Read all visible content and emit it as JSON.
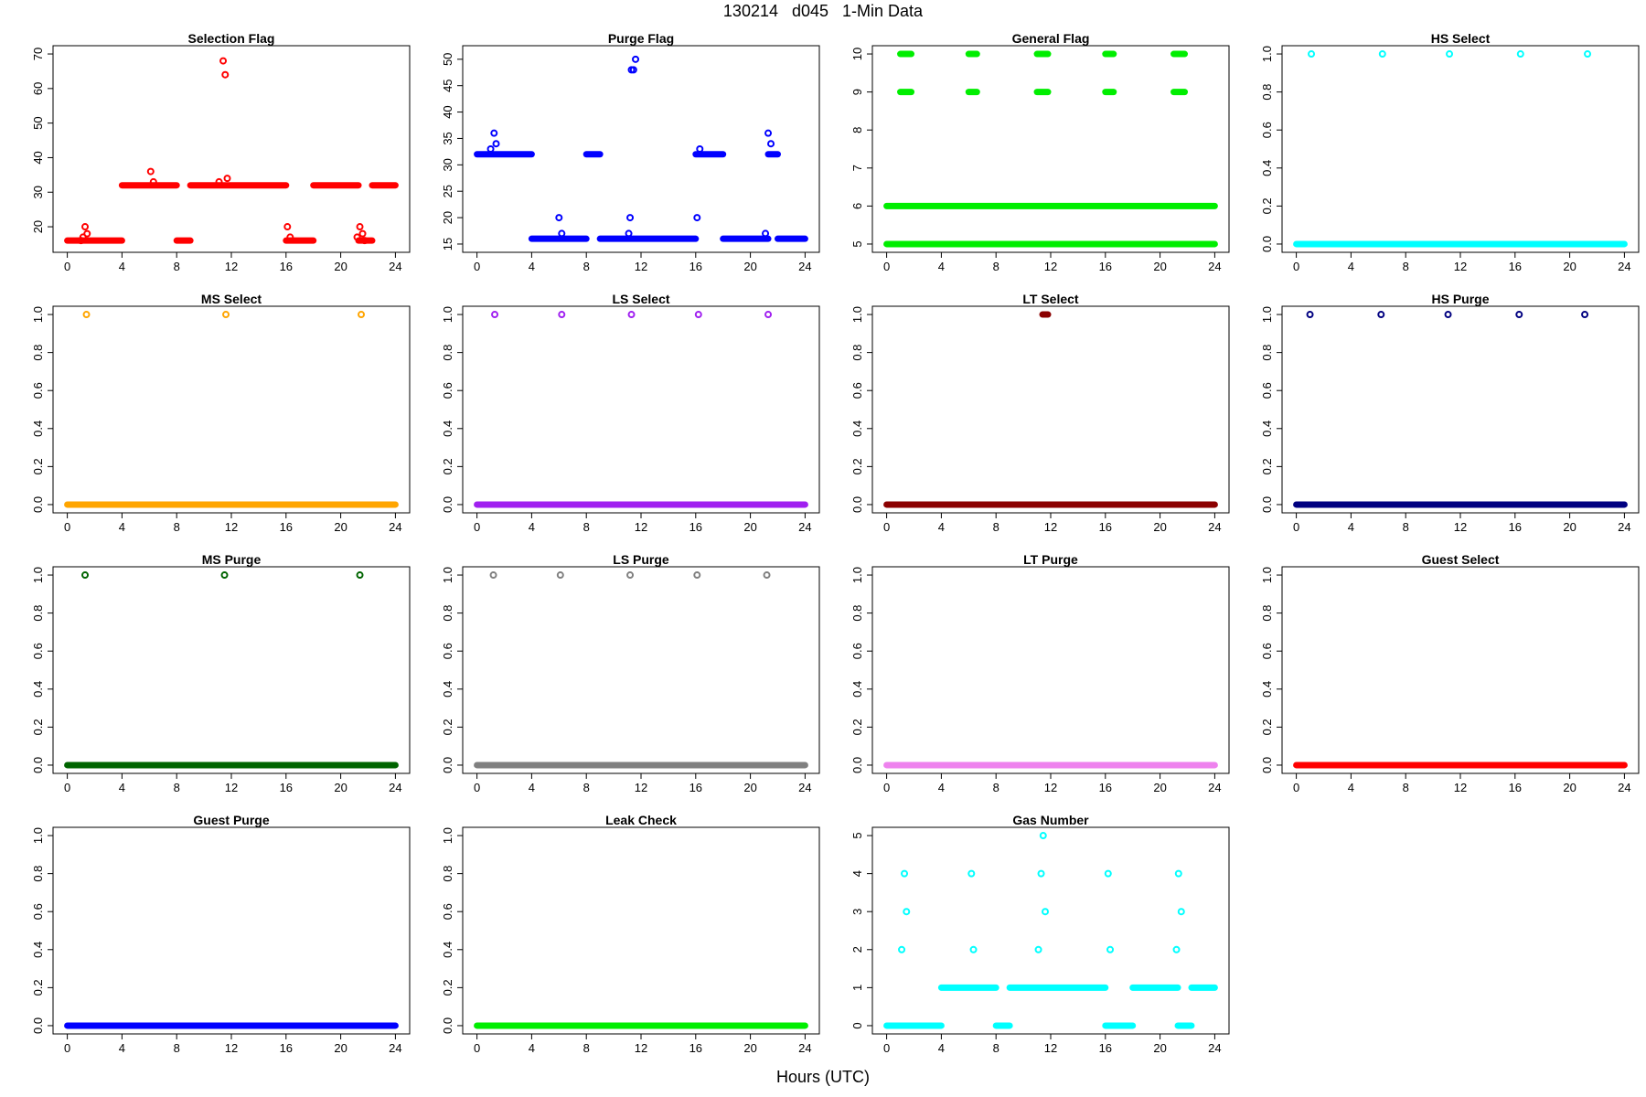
{
  "figure": {
    "title": "130214   d045   1-Min Data",
    "xlabel": "Hours (UTC)"
  },
  "chart_data": [
    {
      "title": "Selection Flag",
      "type": "scatter",
      "color": "#ff0000",
      "xlim": [
        0,
        24
      ],
      "ylim": [
        15,
        70
      ],
      "xticks": [
        0,
        4,
        8,
        12,
        16,
        20,
        24
      ],
      "yticks": [
        20,
        30,
        40,
        50,
        60,
        70
      ],
      "segments": [
        [
          0,
          4,
          16
        ],
        [
          4,
          8,
          32
        ],
        [
          8,
          9,
          16
        ],
        [
          9,
          16,
          32
        ],
        [
          16,
          18,
          16
        ],
        [
          18,
          21.3,
          32
        ],
        [
          21.3,
          22.3,
          16
        ],
        [
          22.3,
          24,
          32
        ]
      ],
      "points": [
        [
          1.0,
          16
        ],
        [
          1.15,
          17
        ],
        [
          1.3,
          20
        ],
        [
          1.45,
          18
        ],
        [
          6.1,
          36
        ],
        [
          6.3,
          33
        ],
        [
          11.1,
          33
        ],
        [
          11.4,
          68
        ],
        [
          11.55,
          64
        ],
        [
          11.7,
          34
        ],
        [
          16.1,
          20
        ],
        [
          16.3,
          17
        ],
        [
          21.2,
          17
        ],
        [
          21.4,
          20
        ],
        [
          21.6,
          18
        ],
        [
          21.75,
          16
        ]
      ]
    },
    {
      "title": "Purge Flag",
      "type": "scatter",
      "color": "#0000ff",
      "xlim": [
        0,
        24
      ],
      "ylim": [
        15,
        51
      ],
      "xticks": [
        0,
        4,
        8,
        12,
        16,
        20,
        24
      ],
      "yticks": [
        15,
        20,
        25,
        30,
        35,
        40,
        45,
        50
      ],
      "segments": [
        [
          0,
          4,
          32
        ],
        [
          4,
          8,
          16
        ],
        [
          8,
          9,
          32
        ],
        [
          9,
          16,
          16
        ],
        [
          16,
          18,
          32
        ],
        [
          18,
          21.3,
          16
        ],
        [
          21.3,
          22,
          32
        ],
        [
          22,
          24,
          16
        ]
      ],
      "points": [
        [
          1.0,
          33
        ],
        [
          1.25,
          36
        ],
        [
          1.4,
          34
        ],
        [
          6.0,
          20
        ],
        [
          6.2,
          17
        ],
        [
          11.1,
          17
        ],
        [
          11.2,
          20
        ],
        [
          11.3,
          48
        ],
        [
          11.45,
          48
        ],
        [
          11.6,
          50
        ],
        [
          16.1,
          20
        ],
        [
          16.3,
          33
        ],
        [
          21.1,
          17
        ],
        [
          21.3,
          36
        ],
        [
          21.5,
          34
        ]
      ]
    },
    {
      "title": "General Flag",
      "type": "scatter",
      "color": "#00ee00",
      "xlim": [
        0,
        24
      ],
      "ylim": [
        5,
        10
      ],
      "xticks": [
        0,
        4,
        8,
        12,
        16,
        20,
        24
      ],
      "yticks": [
        5,
        6,
        7,
        8,
        9,
        10
      ],
      "segments": [
        [
          0,
          24,
          5
        ],
        [
          0,
          24,
          6
        ],
        [
          1.0,
          1.8,
          9
        ],
        [
          1.0,
          1.8,
          10
        ],
        [
          6.0,
          6.6,
          9
        ],
        [
          6.0,
          6.6,
          10
        ],
        [
          11.0,
          11.8,
          9
        ],
        [
          11.0,
          11.8,
          10
        ],
        [
          16.0,
          16.6,
          9
        ],
        [
          16.0,
          16.6,
          10
        ],
        [
          21.0,
          21.8,
          9
        ],
        [
          21.0,
          21.8,
          10
        ]
      ],
      "points": []
    },
    {
      "title": "HS Select",
      "type": "scatter",
      "color": "#00ffff",
      "xlim": [
        0,
        24
      ],
      "ylim": [
        0,
        1
      ],
      "xticks": [
        0,
        4,
        8,
        12,
        16,
        20,
        24
      ],
      "yticks": [
        0.0,
        0.2,
        0.4,
        0.6,
        0.8,
        1.0
      ],
      "segments": [
        [
          0,
          24,
          0
        ]
      ],
      "points": [
        [
          1.1,
          1
        ],
        [
          6.3,
          1
        ],
        [
          11.2,
          1
        ],
        [
          16.4,
          1
        ],
        [
          21.3,
          1
        ]
      ]
    },
    {
      "title": "MS Select",
      "type": "scatter",
      "color": "#ffa500",
      "xlim": [
        0,
        24
      ],
      "ylim": [
        0,
        1
      ],
      "xticks": [
        0,
        4,
        8,
        12,
        16,
        20,
        24
      ],
      "yticks": [
        0.0,
        0.2,
        0.4,
        0.6,
        0.8,
        1.0
      ],
      "segments": [
        [
          0,
          24,
          0
        ]
      ],
      "points": [
        [
          1.4,
          1
        ],
        [
          11.6,
          1
        ],
        [
          21.5,
          1
        ]
      ]
    },
    {
      "title": "LS Select",
      "type": "scatter",
      "color": "#a020f0",
      "xlim": [
        0,
        24
      ],
      "ylim": [
        0,
        1
      ],
      "xticks": [
        0,
        4,
        8,
        12,
        16,
        20,
        24
      ],
      "yticks": [
        0.0,
        0.2,
        0.4,
        0.6,
        0.8,
        1.0
      ],
      "segments": [
        [
          0,
          24,
          0
        ]
      ],
      "points": [
        [
          1.3,
          1
        ],
        [
          6.2,
          1
        ],
        [
          11.3,
          1
        ],
        [
          16.2,
          1
        ],
        [
          21.3,
          1
        ]
      ]
    },
    {
      "title": "LT Select",
      "type": "scatter",
      "color": "#8b0000",
      "xlim": [
        0,
        24
      ],
      "ylim": [
        0,
        1
      ],
      "xticks": [
        0,
        4,
        8,
        12,
        16,
        20,
        24
      ],
      "yticks": [
        0.0,
        0.2,
        0.4,
        0.6,
        0.8,
        1.0
      ],
      "segments": [
        [
          0,
          24,
          0
        ],
        [
          11.4,
          11.8,
          1
        ]
      ],
      "points": []
    },
    {
      "title": "HS Purge",
      "type": "scatter",
      "color": "#000080",
      "xlim": [
        0,
        24
      ],
      "ylim": [
        0,
        1
      ],
      "xticks": [
        0,
        4,
        8,
        12,
        16,
        20,
        24
      ],
      "yticks": [
        0.0,
        0.2,
        0.4,
        0.6,
        0.8,
        1.0
      ],
      "segments": [
        [
          0,
          24,
          0
        ]
      ],
      "points": [
        [
          1.0,
          1
        ],
        [
          6.2,
          1
        ],
        [
          11.1,
          1
        ],
        [
          16.3,
          1
        ],
        [
          21.1,
          1
        ]
      ]
    },
    {
      "title": "MS Purge",
      "type": "scatter",
      "color": "#006400",
      "xlim": [
        0,
        24
      ],
      "ylim": [
        0,
        1
      ],
      "xticks": [
        0,
        4,
        8,
        12,
        16,
        20,
        24
      ],
      "yticks": [
        0.0,
        0.2,
        0.4,
        0.6,
        0.8,
        1.0
      ],
      "segments": [
        [
          0,
          24,
          0
        ]
      ],
      "points": [
        [
          1.3,
          1
        ],
        [
          11.5,
          1
        ],
        [
          21.4,
          1
        ]
      ]
    },
    {
      "title": "LS Purge",
      "type": "scatter",
      "color": "#808080",
      "xlim": [
        0,
        24
      ],
      "ylim": [
        0,
        1
      ],
      "xticks": [
        0,
        4,
        8,
        12,
        16,
        20,
        24
      ],
      "yticks": [
        0.0,
        0.2,
        0.4,
        0.6,
        0.8,
        1.0
      ],
      "segments": [
        [
          0,
          24,
          0
        ]
      ],
      "points": [
        [
          1.2,
          1
        ],
        [
          6.1,
          1
        ],
        [
          11.2,
          1
        ],
        [
          16.1,
          1
        ],
        [
          21.2,
          1
        ]
      ]
    },
    {
      "title": "LT Purge",
      "type": "scatter",
      "color": "#ee82ee",
      "xlim": [
        0,
        24
      ],
      "ylim": [
        0,
        1
      ],
      "xticks": [
        0,
        4,
        8,
        12,
        16,
        20,
        24
      ],
      "yticks": [
        0.0,
        0.2,
        0.4,
        0.6,
        0.8,
        1.0
      ],
      "segments": [
        [
          0,
          24,
          0
        ]
      ],
      "points": []
    },
    {
      "title": "Guest Select",
      "type": "scatter",
      "color": "#ff0000",
      "xlim": [
        0,
        24
      ],
      "ylim": [
        0,
        1
      ],
      "xticks": [
        0,
        4,
        8,
        12,
        16,
        20,
        24
      ],
      "yticks": [
        0.0,
        0.2,
        0.4,
        0.6,
        0.8,
        1.0
      ],
      "segments": [
        [
          0,
          24,
          0
        ]
      ],
      "points": []
    },
    {
      "title": "Guest Purge",
      "type": "scatter",
      "color": "#0000ff",
      "xlim": [
        0,
        24
      ],
      "ylim": [
        0,
        1
      ],
      "xticks": [
        0,
        4,
        8,
        12,
        16,
        20,
        24
      ],
      "yticks": [
        0.0,
        0.2,
        0.4,
        0.6,
        0.8,
        1.0
      ],
      "segments": [
        [
          0,
          24,
          0
        ]
      ],
      "points": []
    },
    {
      "title": "Leak Check",
      "type": "scatter",
      "color": "#00ee00",
      "xlim": [
        0,
        24
      ],
      "ylim": [
        0,
        1
      ],
      "xticks": [
        0,
        4,
        8,
        12,
        16,
        20,
        24
      ],
      "yticks": [
        0.0,
        0.2,
        0.4,
        0.6,
        0.8,
        1.0
      ],
      "segments": [
        [
          0,
          24,
          0
        ]
      ],
      "points": []
    },
    {
      "title": "Gas Number",
      "type": "scatter",
      "color": "#00ffff",
      "xlim": [
        0,
        24
      ],
      "ylim": [
        0,
        5
      ],
      "xticks": [
        0,
        4,
        8,
        12,
        16,
        20,
        24
      ],
      "yticks": [
        0,
        1,
        2,
        3,
        4,
        5
      ],
      "segments": [
        [
          0,
          4,
          0
        ],
        [
          4,
          8,
          1
        ],
        [
          8,
          9,
          0
        ],
        [
          9,
          16,
          1
        ],
        [
          16,
          18,
          0
        ],
        [
          18,
          21.3,
          1
        ],
        [
          21.3,
          22.3,
          0
        ],
        [
          22.3,
          24,
          1
        ]
      ],
      "points": [
        [
          1.1,
          2
        ],
        [
          1.3,
          4
        ],
        [
          1.45,
          3
        ],
        [
          6.2,
          4
        ],
        [
          6.35,
          2
        ],
        [
          11.1,
          2
        ],
        [
          11.3,
          4
        ],
        [
          11.45,
          5
        ],
        [
          11.6,
          3
        ],
        [
          16.2,
          4
        ],
        [
          16.35,
          2
        ],
        [
          21.2,
          2
        ],
        [
          21.35,
          4
        ],
        [
          21.55,
          3
        ]
      ]
    }
  ]
}
